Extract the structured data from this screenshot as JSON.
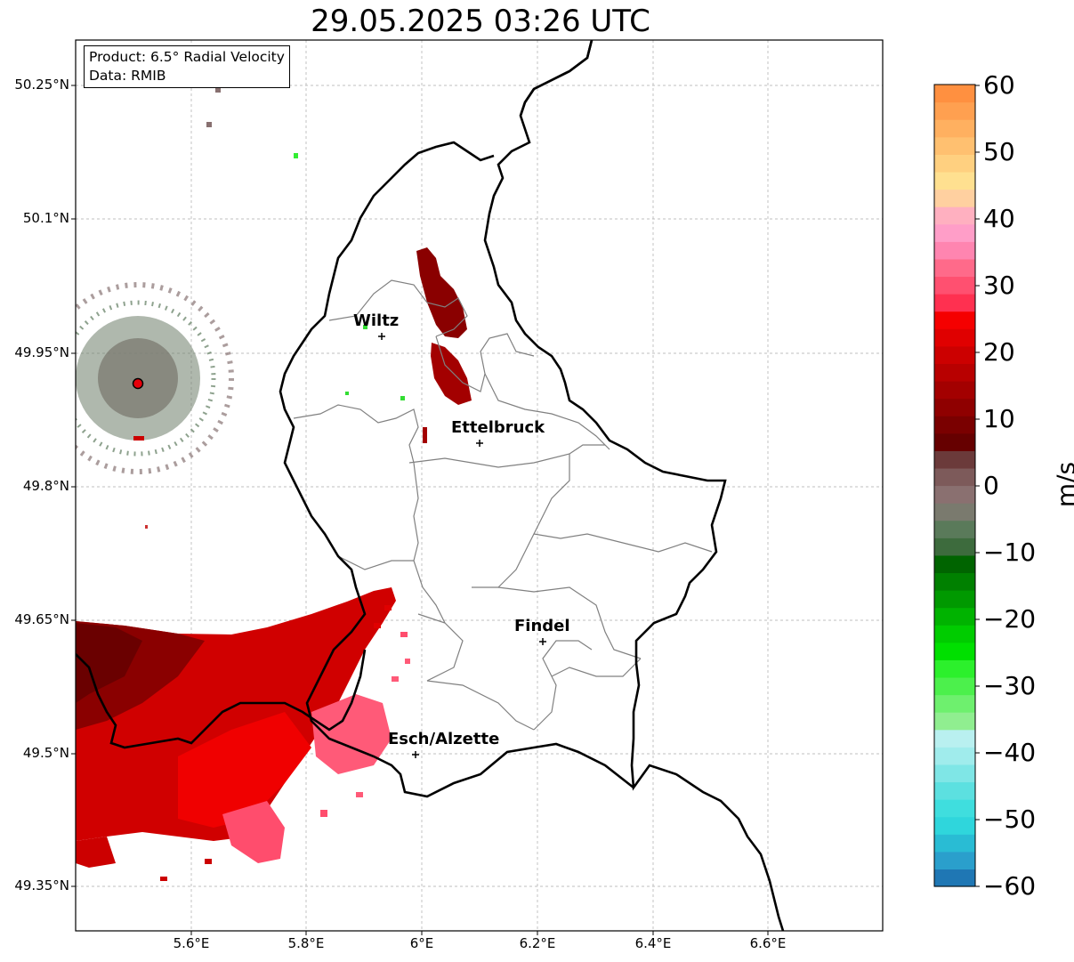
{
  "title": "29.05.2025 03:26 UTC",
  "info_box": {
    "product_line": "Product: 6.5° Radial Velocity",
    "data_line": "Data: RMIB"
  },
  "map": {
    "lon_range": [
      5.4,
      6.8
    ],
    "lat_range": [
      49.3,
      50.3
    ],
    "lat_ticks": [
      "50.25°N",
      "50.1°N",
      "49.95°N",
      "49.8°N",
      "49.65°N",
      "49.5°N",
      "49.35°N"
    ],
    "lon_ticks": [
      "5.6°E",
      "5.8°E",
      "6°E",
      "6.2°E",
      "6.4°E",
      "6.6°E"
    ],
    "cities": [
      {
        "name": "Wiltz",
        "lon": 5.93,
        "lat": 49.97
      },
      {
        "name": "Ettelbruck",
        "lon": 6.1,
        "lat": 49.85
      },
      {
        "name": "Findel",
        "lon": 6.21,
        "lat": 49.63
      },
      {
        "name": "Esch/Alzette",
        "lon": 5.99,
        "lat": 49.5
      }
    ],
    "radar_site_color": "#e8000b"
  },
  "colorbar": {
    "label": "m/s",
    "range": [
      -60,
      60
    ],
    "ticks": [
      "60",
      "50",
      "40",
      "30",
      "20",
      "10",
      "0",
      "−10",
      "−20",
      "−30",
      "−40",
      "−50",
      "−60"
    ],
    "colors_bottom_to_top": [
      "#1f77b4",
      "#2a9fcc",
      "#29bcd4",
      "#2fd6dc",
      "#3fdede",
      "#5ce0e0",
      "#7fe6e6",
      "#a0ecec",
      "#b9f0f0",
      "#90ee90",
      "#6ef06e",
      "#4cf04c",
      "#2cf02c",
      "#00e000",
      "#00cc00",
      "#00b300",
      "#009900",
      "#008000",
      "#006400",
      "#3d6b3d",
      "#5a7a5a",
      "#7a7a6e",
      "#8a7070",
      "#7d5a5a",
      "#6b3a3a",
      "#660000",
      "#7a0000",
      "#8f0000",
      "#a30000",
      "#b80000",
      "#cc0000",
      "#e00000",
      "#f50000",
      "#ff3050",
      "#ff5070",
      "#ff6a8a",
      "#ff85b0",
      "#ff9ec8",
      "#ffb0c0",
      "#ffd0a0",
      "#ffe090",
      "#ffd080",
      "#ffc070",
      "#ffb060",
      "#ffa050",
      "#ff9040"
    ]
  }
}
